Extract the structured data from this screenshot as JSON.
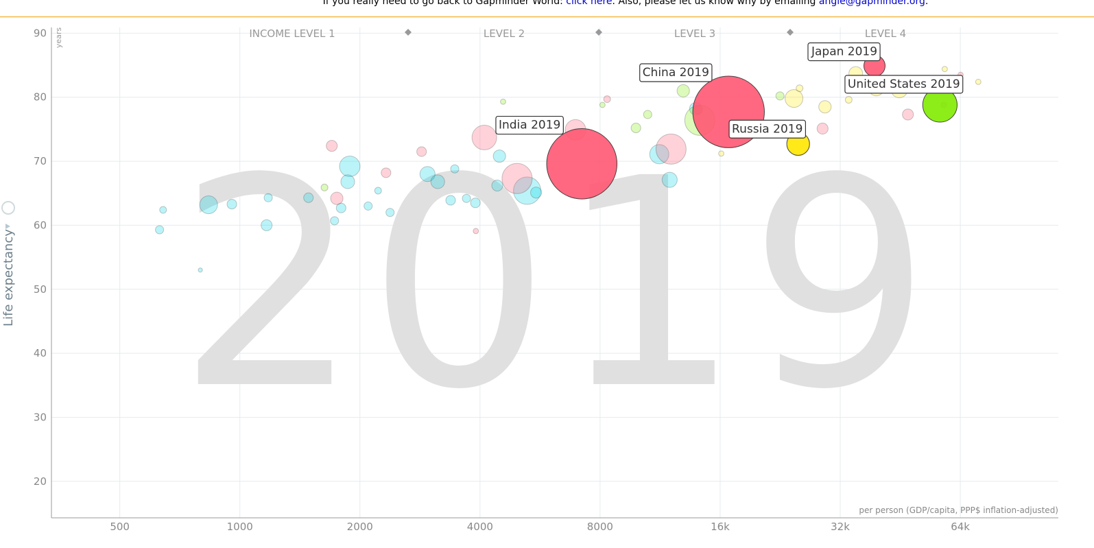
{
  "banner": {
    "text": "If you really need to go back to Gapminder World: ",
    "link": "click here",
    "middle": ". Also, please let us know why by emailing ",
    "email": "angie@gapminder.org",
    "end": "."
  },
  "chart_data": {
    "type": "bubble",
    "year": "2019",
    "ylabel": "Life expectancy",
    "yunit": "years",
    "xlabel": "per person (GDP/capita, PPP$ inflation-adjusted)",
    "income_levels": [
      "INCOME LEVEL 1",
      "LEVEL 2",
      "LEVEL 3",
      "LEVEL 4"
    ],
    "xscale": "log",
    "grid": true,
    "xlim": [
      337,
      112700
    ],
    "ylim": [
      14.3,
      90.9
    ],
    "xticks": [
      500,
      1000,
      2000,
      4000,
      8000,
      {
        "value": 16000,
        "label": "16k"
      },
      {
        "value": 32000,
        "label": "32k"
      },
      {
        "value": 64000,
        "label": "64k"
      }
    ],
    "yticks": [
      20,
      30,
      40,
      50,
      60,
      70,
      80,
      90
    ],
    "series": [
      {
        "color": "#00d5e9",
        "opacity": 0.3,
        "x": [
          629,
          642,
          796,
          835,
          955,
          1167,
          1178,
          1486,
          1886,
          1864,
          1794,
          1727,
          2097,
          2221,
          2380,
          2954,
          3134,
          3376,
          3699,
          3895,
          3457,
          4475,
          4419,
          5251,
          5529,
          11259,
          11955,
          13896
        ],
        "values": [
          59.3,
          62.4,
          53.0,
          63.2,
          63.3,
          60.0,
          64.3,
          64.3,
          69.2,
          66.8,
          62.7,
          60.7,
          63.0,
          65.4,
          62.0,
          68.0,
          66.8,
          63.9,
          64.2,
          63.5,
          68.8,
          70.8,
          66.2,
          65.4,
          65.1,
          71.1,
          67.1,
          78.2
        ],
        "sizes": [
          19,
          13,
          5,
          89,
          26,
          34,
          19,
          26,
          118,
          53,
          26,
          19,
          19,
          13,
          19,
          64,
          53,
          26,
          19,
          26,
          19,
          43,
          34,
          210,
          34,
          103,
          64,
          43
        ]
      },
      {
        "color": "#ff5872",
        "opacity": 0.3,
        "x": [
          4101,
          4955,
          6941,
          12050,
          47300,
          28900,
          14100,
          2855,
          1700,
          1750,
          2325,
          3905,
          8331,
          64100,
          58200
        ],
        "values": [
          73.7,
          67.3,
          74.9,
          71.9,
          77.3,
          75.1,
          78.0,
          71.5,
          72.4,
          64.2,
          68.2,
          59.1,
          79.7,
          83.5,
          78.8
        ],
        "sizes": [
          170,
          254,
          118,
          254,
          34,
          34,
          19,
          26,
          34,
          43,
          26,
          8,
          13,
          8,
          8
        ]
      },
      {
        "color": "#7feb00",
        "opacity": 0.3,
        "x": [
          14230,
          12930,
          9840,
          10530,
          1630,
          4570,
          8110,
          22600
        ],
        "values": [
          76.4,
          81.0,
          75.2,
          77.3,
          65.9,
          79.3,
          78.8,
          80.2
        ],
        "sizes": [
          254,
          43,
          26,
          19,
          13,
          8,
          8,
          19
        ]
      },
      {
        "color": "#ffe700",
        "opacity": 0.3,
        "x": [
          24500,
          29300,
          35000,
          39400,
          45000,
          58500,
          25000,
          25300,
          33600,
          71000,
          16100
        ],
        "values": [
          79.8,
          78.5,
          83.7,
          81.4,
          81.2,
          84.4,
          75.6,
          81.4,
          79.6,
          82.4,
          71.2
        ],
        "sizes": [
          89,
          43,
          53,
          64,
          76,
          8,
          13,
          13,
          13,
          8,
          8
        ]
      },
      {
        "color": "#ff5872",
        "opacity": 1,
        "x": [
          7200,
          16800,
          39000
        ],
        "values": [
          69.6,
          77.7,
          84.9
        ],
        "sizes": [
          1380,
          1430,
          126
        ],
        "labels": [
          "India 2019",
          "China 2019",
          "Japan 2019"
        ]
      },
      {
        "color": "#7feb00",
        "opacity": 1,
        "x": [
          56900
        ],
        "values": [
          78.8
        ],
        "sizes": [
          330
        ],
        "labels": [
          "United States 2019"
        ]
      },
      {
        "color": "#ffe700",
        "opacity": 1,
        "x": [
          25100
        ],
        "values": [
          72.7
        ],
        "sizes": [
          145
        ],
        "labels": [
          "Russia 2019"
        ]
      }
    ]
  }
}
